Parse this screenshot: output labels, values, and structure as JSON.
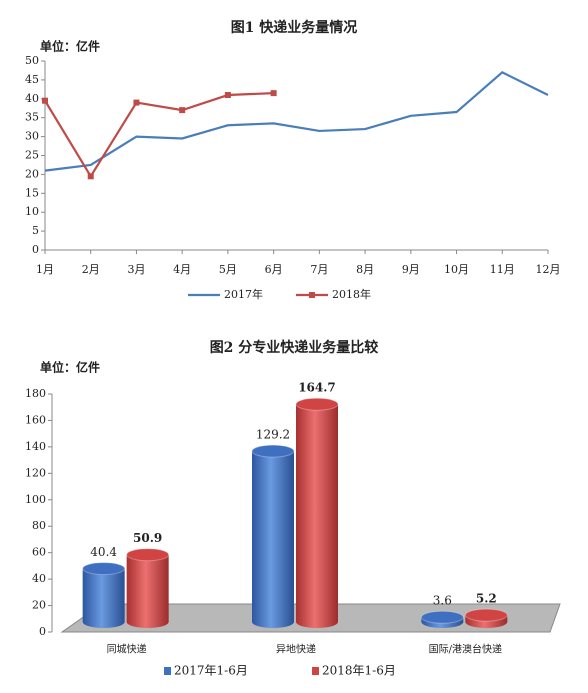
{
  "chart_data": [
    {
      "type": "line",
      "title": "图1  快递业务量情况",
      "unit": "单位：亿件",
      "categories": [
        "1月",
        "2月",
        "3月",
        "4月",
        "5月",
        "6月",
        "7月",
        "8月",
        "9月",
        "10月",
        "11月",
        "12月"
      ],
      "series": [
        {
          "name": "2017年",
          "color": "#4a7ebb",
          "values": [
            21,
            22.5,
            30,
            29.5,
            33,
            33.5,
            31.5,
            32,
            35.5,
            36.5,
            47,
            41
          ]
        },
        {
          "name": "2018年",
          "color": "#be4b48",
          "values": [
            39.5,
            19.5,
            39,
            37,
            41,
            41.5,
            null,
            null,
            null,
            null,
            null,
            null
          ]
        }
      ],
      "ylim": [
        0,
        50
      ],
      "yticks": [
        0,
        5,
        10,
        15,
        20,
        25,
        30,
        35,
        40,
        45,
        50
      ],
      "legend": "bottom"
    },
    {
      "type": "bar",
      "title": "图2  分专业快递业务量比较",
      "unit": "单位：亿件",
      "categories": [
        "同城快递",
        "异地快递",
        "国际/港澳台快递"
      ],
      "series": [
        {
          "name": "2017年1-6月",
          "color": "#3f6fc0",
          "values": [
            40.4,
            129.2,
            3.6
          ]
        },
        {
          "name": "2018年1-6月",
          "color": "#d04444",
          "values": [
            50.9,
            164.7,
            5.2
          ]
        }
      ],
      "ylim": [
        0,
        180
      ],
      "yticks": [
        0,
        20,
        40,
        60,
        80,
        100,
        120,
        140,
        160,
        180
      ],
      "legend": "bottom"
    }
  ]
}
